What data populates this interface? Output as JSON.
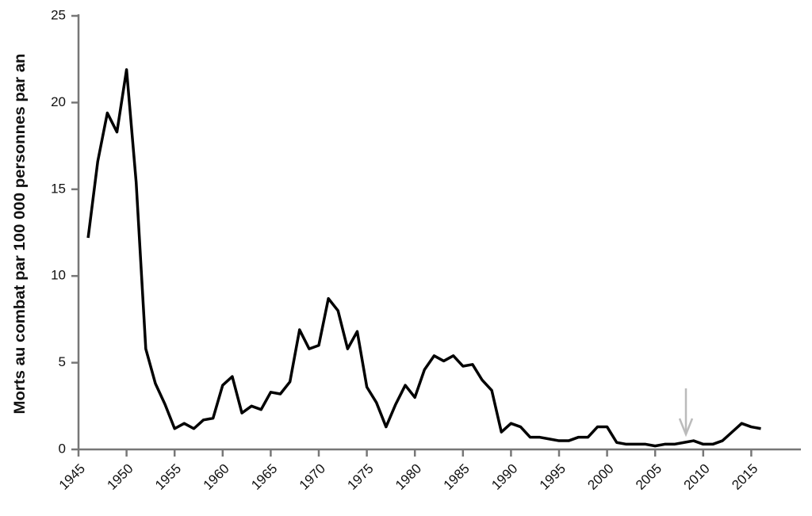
{
  "chart_data": {
    "type": "line",
    "y_label": "Morts au combat par 100 000 personnes par an",
    "x": [
      1946,
      1947,
      1948,
      1949,
      1950,
      1951,
      1952,
      1953,
      1954,
      1955,
      1956,
      1957,
      1958,
      1959,
      1960,
      1961,
      1962,
      1963,
      1964,
      1965,
      1966,
      1967,
      1968,
      1969,
      1970,
      1971,
      1972,
      1973,
      1974,
      1975,
      1976,
      1977,
      1978,
      1979,
      1980,
      1981,
      1982,
      1983,
      1984,
      1985,
      1986,
      1987,
      1988,
      1989,
      1990,
      1991,
      1992,
      1993,
      1994,
      1995,
      1996,
      1997,
      1998,
      1999,
      2000,
      2001,
      2002,
      2003,
      2004,
      2005,
      2006,
      2007,
      2008,
      2009,
      2010,
      2011,
      2012,
      2013,
      2014,
      2015,
      2016
    ],
    "series": [
      {
        "color": "#000000",
        "values": [
          12.2,
          16.6,
          19.4,
          18.3,
          21.9,
          15.4,
          5.8,
          3.8,
          2.6,
          1.2,
          1.5,
          1.2,
          1.7,
          1.8,
          3.7,
          4.2,
          2.1,
          2.5,
          2.3,
          3.3,
          3.2,
          3.9,
          6.9,
          5.8,
          6.0,
          8.7,
          8.0,
          5.8,
          6.8,
          3.6,
          2.7,
          1.3,
          2.6,
          3.7,
          3.0,
          4.6,
          5.4,
          5.1,
          5.4,
          4.8,
          4.9,
          4.0,
          3.4,
          1.0,
          1.5,
          1.3,
          0.7,
          0.7,
          0.6,
          0.5,
          0.5,
          0.7,
          0.7,
          1.3,
          1.3,
          0.4,
          0.3,
          0.3,
          0.3,
          0.2,
          0.3,
          0.3,
          0.4,
          0.5,
          0.3,
          0.3,
          0.5,
          1.0,
          1.5,
          1.3,
          1.2
        ]
      }
    ],
    "xlim": [
      1945,
      2020
    ],
    "xticks": [
      1945,
      1950,
      1955,
      1960,
      1965,
      1970,
      1975,
      1980,
      1985,
      1990,
      1995,
      2000,
      2005,
      2010,
      2015
    ],
    "ylim": [
      0,
      25
    ],
    "yticks": [
      0,
      5,
      10,
      15,
      20,
      25
    ]
  }
}
